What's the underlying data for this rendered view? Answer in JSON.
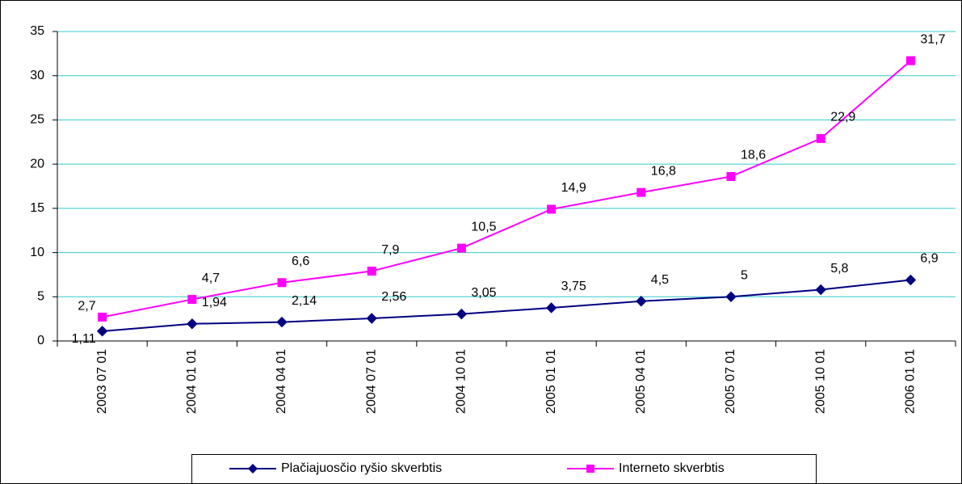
{
  "chart_data": {
    "type": "line",
    "categories": [
      "2003 07 01",
      "2004 01 01",
      "2004 04 01",
      "2004 07 01",
      "2004 10 01",
      "2005 01 01",
      "2005 04 01",
      "2005 07 01",
      "2005 10 01",
      "2006 01 01"
    ],
    "series": [
      {
        "name": "Plačiajuosčio ryšio skverbtis",
        "color": "#000080",
        "marker": "diamond",
        "values": [
          1.11,
          1.94,
          2.14,
          2.56,
          3.05,
          3.75,
          4.5,
          5,
          5.8,
          6.9
        ],
        "value_labels": [
          "1,11",
          "1,94",
          "2,14",
          "2,56",
          "3,05",
          "3,75",
          "4,5",
          "5",
          "5,8",
          "6,9"
        ]
      },
      {
        "name": "Interneto skverbtis",
        "color": "#ff00ff",
        "marker": "square",
        "values": [
          2.7,
          4.7,
          6.6,
          7.9,
          10.5,
          14.9,
          16.8,
          18.6,
          22.9,
          31.7
        ],
        "value_labels": [
          "2,7",
          "4,7",
          "6,6",
          "7,9",
          "10,5",
          "14,9",
          "16,8",
          "18,6",
          "22,9",
          "31,7"
        ]
      }
    ],
    "ylim": [
      0,
      35
    ],
    "yticks": [
      0,
      5,
      10,
      15,
      20,
      25,
      30,
      35
    ],
    "grid": true,
    "grid_color": "#33cccc",
    "legend": "bottom"
  }
}
